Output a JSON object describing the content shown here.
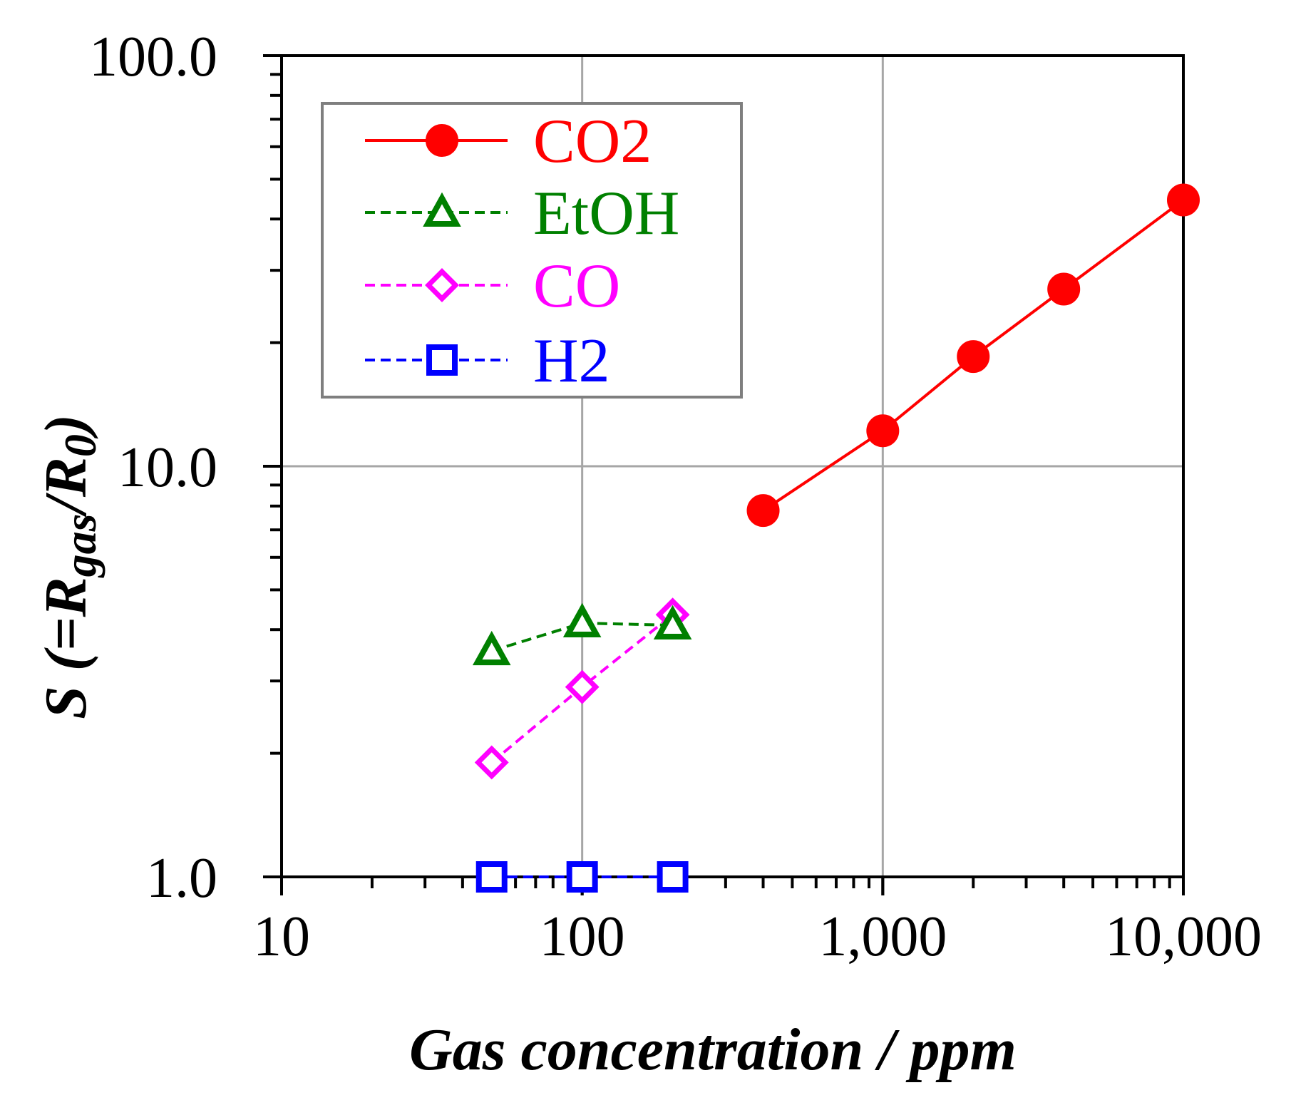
{
  "chart_data": {
    "type": "line",
    "title": "",
    "x_scale": "log",
    "y_scale": "log",
    "xlim": [
      10,
      10000
    ],
    "ylim": [
      1,
      100
    ],
    "x_ticks": [
      {
        "value": 10,
        "label": "10"
      },
      {
        "value": 100,
        "label": "100"
      },
      {
        "value": 1000,
        "label": "1,000"
      },
      {
        "value": 10000,
        "label": "10,000"
      }
    ],
    "y_ticks": [
      {
        "value": 1,
        "label": "1.0"
      },
      {
        "value": 10,
        "label": "10.0"
      },
      {
        "value": 100,
        "label": "100.0"
      }
    ],
    "xlabel": "Gas concentration / ppm",
    "ylabel": {
      "s": "S",
      "open": " (=",
      "r1": "R",
      "sub1": "gas",
      "slash": "/",
      "r2": "R",
      "sub2": "0",
      "close": ")"
    },
    "grid": true,
    "legend_position": "top-left",
    "series": [
      {
        "name": "CO2",
        "color": "#ff0000",
        "marker": "circle-filled",
        "line": "solid",
        "x": [
          400,
          1000,
          2000,
          4000,
          10000
        ],
        "y": [
          7.8,
          12.2,
          18.5,
          27.0,
          44.5
        ]
      },
      {
        "name": "EtOH",
        "color": "#008000",
        "marker": "triangle-open",
        "line": "dashed",
        "x": [
          50,
          100,
          200
        ],
        "y": [
          3.55,
          4.15,
          4.1
        ]
      },
      {
        "name": "CO",
        "color": "#ff00ff",
        "marker": "diamond-open",
        "line": "dashed",
        "x": [
          50,
          100,
          200
        ],
        "y": [
          1.9,
          2.9,
          4.35
        ]
      },
      {
        "name": "H2",
        "color": "#0000ff",
        "marker": "square-open",
        "line": "dashed",
        "x": [
          50,
          100,
          200
        ],
        "y": [
          1.0,
          1.0,
          1.0
        ]
      }
    ]
  }
}
